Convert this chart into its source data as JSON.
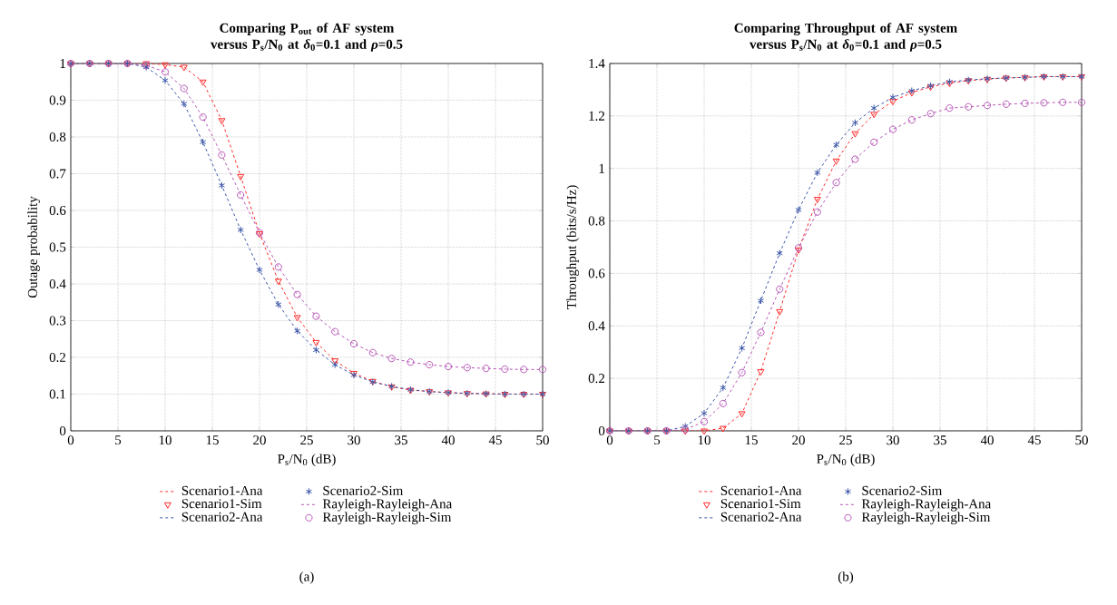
{
  "chart_data": [
    {
      "type": "line",
      "title": "Comparing P$_{out}$ of AF system versus P$_{s}$/N$_{0}$ at *δ*$_{0}$=0.1 and *ρ*=0.5",
      "xlabel": "P$_{s}$/N$_{0}$ (dB)",
      "ylabel": "Outage probability",
      "x": [
        0,
        2,
        4,
        6,
        8,
        10,
        12,
        14,
        16,
        18,
        20,
        22,
        24,
        26,
        28,
        30,
        32,
        34,
        36,
        38,
        40,
        42,
        44,
        46,
        48,
        50
      ],
      "series": [
        {
          "name": "Scenario1-Ana",
          "color": "#ff2a2a",
          "marker": "none",
          "line_style": "dashed",
          "values": [
            1,
            1,
            1,
            1,
            1,
            0.997,
            0.99,
            0.95,
            0.845,
            0.693,
            0.537,
            0.408,
            0.309,
            0.241,
            0.191,
            0.157,
            0.135,
            0.12,
            0.111,
            0.107,
            0.104,
            0.102,
            0.101,
            0.1,
            0.1,
            0.1
          ]
        },
        {
          "name": "Scenario1-Sim",
          "type": "scatter",
          "color": "#ff2a2a",
          "marker": "triangle",
          "line_style": "none",
          "values": [
            1,
            1,
            1,
            1,
            1,
            0.997,
            0.99,
            0.95,
            0.845,
            0.693,
            0.537,
            0.408,
            0.309,
            0.241,
            0.191,
            0.157,
            0.135,
            0.12,
            0.111,
            0.107,
            0.104,
            0.102,
            0.101,
            0.1,
            0.1,
            0.1
          ]
        },
        {
          "name": "Scenario2-Ana",
          "color": "#3a55a8",
          "marker": "none",
          "line_style": "dashed",
          "values": [
            1,
            1,
            1,
            1,
            0.99,
            0.954,
            0.89,
            0.786,
            0.668,
            0.547,
            0.438,
            0.344,
            0.272,
            0.22,
            0.18,
            0.152,
            0.133,
            0.121,
            0.112,
            0.107,
            0.104,
            0.102,
            0.101,
            0.1,
            0.1,
            0.1
          ]
        },
        {
          "name": "Scenario2-Sim",
          "type": "scatter",
          "color": "#3a55a8",
          "marker": "cross",
          "line_style": "none",
          "values": [
            1,
            1,
            1,
            1,
            0.99,
            0.954,
            0.89,
            0.786,
            0.668,
            0.547,
            0.438,
            0.344,
            0.272,
            0.22,
            0.18,
            0.152,
            0.133,
            0.121,
            0.112,
            0.107,
            0.104,
            0.102,
            0.101,
            0.1,
            0.1,
            0.1
          ]
        },
        {
          "name": "Rayleigh-Rayleigh-Ana",
          "color": "#b555b5",
          "marker": "none",
          "line_style": "dashed",
          "values": [
            1,
            1,
            1,
            1,
            0.995,
            0.977,
            0.932,
            0.854,
            0.751,
            0.642,
            0.539,
            0.446,
            0.371,
            0.312,
            0.27,
            0.237,
            0.213,
            0.197,
            0.187,
            0.18,
            0.175,
            0.172,
            0.17,
            0.168,
            0.167,
            0.167
          ]
        },
        {
          "name": "Rayleigh-Rayleigh-Sim",
          "type": "scatter",
          "color": "#b555b5",
          "marker": "circle",
          "line_style": "none",
          "values": [
            1,
            1,
            1,
            1,
            0.995,
            0.977,
            0.932,
            0.854,
            0.751,
            0.642,
            0.539,
            0.446,
            0.371,
            0.312,
            0.27,
            0.237,
            0.213,
            0.197,
            0.187,
            0.18,
            0.175,
            0.172,
            0.17,
            0.168,
            0.167,
            0.167
          ]
        }
      ],
      "xlim": [
        0,
        50
      ],
      "ylim": [
        0,
        1
      ],
      "xticks": [
        0,
        5,
        10,
        15,
        20,
        25,
        30,
        35,
        40,
        45,
        50
      ],
      "yticks": [
        0,
        0.1,
        0.2,
        0.3,
        0.4,
        0.5,
        0.6,
        0.7,
        0.8,
        0.9,
        1
      ],
      "grid": true,
      "legend": "bottom",
      "annotations": [
        "(a)"
      ]
    },
    {
      "type": "line",
      "title": "Comparing Throughput of AF system versus P$_{s}$/N$_{0}$ at *δ*$_{0}$=0.1 and *ρ*=0.5",
      "xlabel": "P$_{s}$/N$_{0}$ (dB)",
      "ylabel": "Throughput (bits/s/Hz)",
      "x": [
        0,
        2,
        4,
        6,
        8,
        10,
        12,
        14,
        16,
        18,
        20,
        22,
        24,
        26,
        28,
        30,
        32,
        34,
        36,
        38,
        40,
        42,
        44,
        46,
        48,
        50
      ],
      "series": [
        {
          "name": "Scenario1-Ana",
          "color": "#ff2a2a",
          "marker": "none",
          "line_style": "dashed",
          "values": [
            0,
            0,
            0,
            0,
            0,
            0,
            0.01,
            0.066,
            0.226,
            0.455,
            0.69,
            0.883,
            1.029,
            1.133,
            1.207,
            1.256,
            1.289,
            1.311,
            1.325,
            1.335,
            1.34,
            1.345,
            1.347,
            1.35,
            1.35,
            1.35
          ]
        },
        {
          "name": "Scenario1-Sim",
          "type": "scatter",
          "color": "#ff2a2a",
          "marker": "triangle",
          "line_style": "none",
          "values": [
            0,
            0,
            0,
            0,
            0,
            0,
            0.01,
            0.066,
            0.226,
            0.455,
            0.69,
            0.883,
            1.029,
            1.133,
            1.207,
            1.256,
            1.289,
            1.311,
            1.325,
            1.335,
            1.34,
            1.345,
            1.347,
            1.35,
            1.35,
            1.35
          ]
        },
        {
          "name": "Scenario2-Ana",
          "color": "#3a55a8",
          "marker": "none",
          "line_style": "dashed",
          "values": [
            0,
            0,
            0,
            0,
            0.017,
            0.067,
            0.164,
            0.315,
            0.496,
            0.677,
            0.842,
            0.984,
            1.09,
            1.174,
            1.23,
            1.271,
            1.296,
            1.315,
            1.33,
            1.337,
            1.342,
            1.345,
            1.347,
            1.35,
            1.35,
            1.35
          ]
        },
        {
          "name": "Scenario2-Sim",
          "type": "scatter",
          "color": "#3a55a8",
          "marker": "cross",
          "line_style": "none",
          "values": [
            0,
            0,
            0,
            0,
            0.017,
            0.067,
            0.164,
            0.315,
            0.496,
            0.677,
            0.842,
            0.984,
            1.09,
            1.174,
            1.23,
            1.271,
            1.296,
            1.315,
            1.33,
            1.337,
            1.342,
            1.345,
            1.347,
            1.35,
            1.35,
            1.35
          ]
        },
        {
          "name": "Rayleigh-Rayleigh-Ana",
          "color": "#b555b5",
          "marker": "none",
          "line_style": "dashed",
          "values": [
            0,
            0,
            0,
            0,
            0.005,
            0.035,
            0.104,
            0.222,
            0.375,
            0.54,
            0.697,
            0.834,
            0.946,
            1.035,
            1.1,
            1.149,
            1.185,
            1.209,
            1.23,
            1.235,
            1.24,
            1.245,
            1.248,
            1.25,
            1.252,
            1.252
          ]
        },
        {
          "name": "Rayleigh-Rayleigh-Sim",
          "type": "scatter",
          "color": "#b555b5",
          "marker": "circle",
          "line_style": "none",
          "values": [
            0,
            0,
            0,
            0,
            0.005,
            0.035,
            0.104,
            0.222,
            0.375,
            0.54,
            0.697,
            0.834,
            0.946,
            1.035,
            1.1,
            1.149,
            1.185,
            1.209,
            1.23,
            1.235,
            1.24,
            1.245,
            1.248,
            1.25,
            1.252,
            1.252
          ]
        }
      ],
      "xlim": [
        0,
        50
      ],
      "ylim": [
        0,
        1.4
      ],
      "xticks": [
        0,
        5,
        10,
        15,
        20,
        25,
        30,
        35,
        40,
        45,
        50
      ],
      "yticks": [
        0,
        0.2,
        0.4,
        0.6,
        0.8,
        1,
        1.2,
        1.4
      ],
      "grid": true,
      "legend": "bottom",
      "annotations": [
        "(b)"
      ]
    }
  ]
}
